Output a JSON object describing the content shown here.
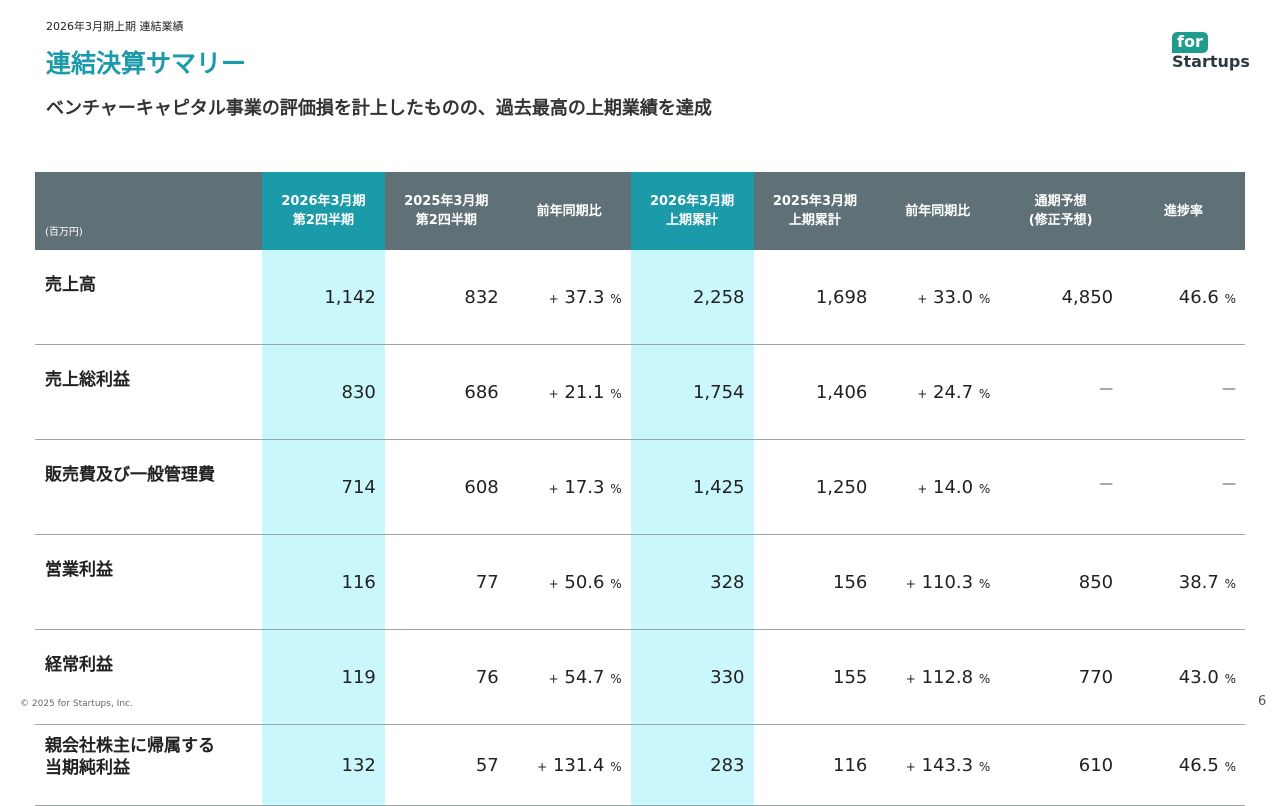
{
  "header": {
    "breadcrumb": "2026年3月期上期 連結業績",
    "title": "連結決算サマリー",
    "subtitle": "ベンチャーキャピタル事業の評価損を計上したものの、過去最高の上期業績を達成"
  },
  "logo": {
    "top": "for",
    "bottom": "Startups"
  },
  "table": {
    "unit": "(百万円)",
    "columns": [
      [
        "2026年3月期",
        "第2四半期"
      ],
      [
        "2025年3月期",
        "第2四半期"
      ],
      [
        "前年同期比"
      ],
      [
        "2026年3月期",
        "上期累計"
      ],
      [
        "2025年3月期",
        "上期累計"
      ],
      [
        "前年同期比"
      ],
      [
        "通期予想",
        "(修正予想)"
      ],
      [
        "進捗率"
      ]
    ],
    "rows": [
      {
        "label": [
          "売上高"
        ],
        "cells": [
          "1,142",
          "832",
          {
            "sign": "+",
            "number": "37.3",
            "unit": "%"
          },
          "2,258",
          "1,698",
          {
            "sign": "+",
            "number": "33.0",
            "unit": "%"
          },
          "4,850",
          {
            "number": "46.6",
            "unit": "%"
          }
        ]
      },
      {
        "label": [
          "売上総利益"
        ],
        "cells": [
          "830",
          "686",
          {
            "sign": "+",
            "number": "21.1",
            "unit": "%"
          },
          "1,754",
          "1,406",
          {
            "sign": "+",
            "number": "24.7",
            "unit": "%"
          },
          "—",
          "—"
        ]
      },
      {
        "label": [
          "販売費及び一般管理費"
        ],
        "cells": [
          "714",
          "608",
          {
            "sign": "+",
            "number": "17.3",
            "unit": "%"
          },
          "1,425",
          "1,250",
          {
            "sign": "+",
            "number": "14.0",
            "unit": "%"
          },
          "—",
          "—"
        ]
      },
      {
        "label": [
          "営業利益"
        ],
        "cells": [
          "116",
          "77",
          {
            "sign": "+",
            "number": "50.6",
            "unit": "%"
          },
          "328",
          "156",
          {
            "sign": "+",
            "number": "110.3",
            "unit": "%"
          },
          "850",
          {
            "number": "38.7",
            "unit": "%"
          }
        ]
      },
      {
        "label": [
          "経常利益"
        ],
        "cells": [
          "119",
          "76",
          {
            "sign": "+",
            "number": "54.7",
            "unit": "%"
          },
          "330",
          "155",
          {
            "sign": "+",
            "number": "112.8",
            "unit": "%"
          },
          "770",
          {
            "number": "43.0",
            "unit": "%"
          }
        ]
      },
      {
        "label": [
          "親会社株主に帰属する",
          "当期純利益"
        ],
        "cells": [
          "132",
          "57",
          {
            "sign": "+",
            "number": "131.4",
            "unit": "%"
          },
          "283",
          "116",
          {
            "sign": "+",
            "number": "143.3",
            "unit": "%"
          },
          "610",
          {
            "number": "46.5",
            "unit": "%"
          }
        ]
      }
    ]
  },
  "footer": {
    "copyright": "© 2025 for Startups, Inc.",
    "page": "6"
  }
}
